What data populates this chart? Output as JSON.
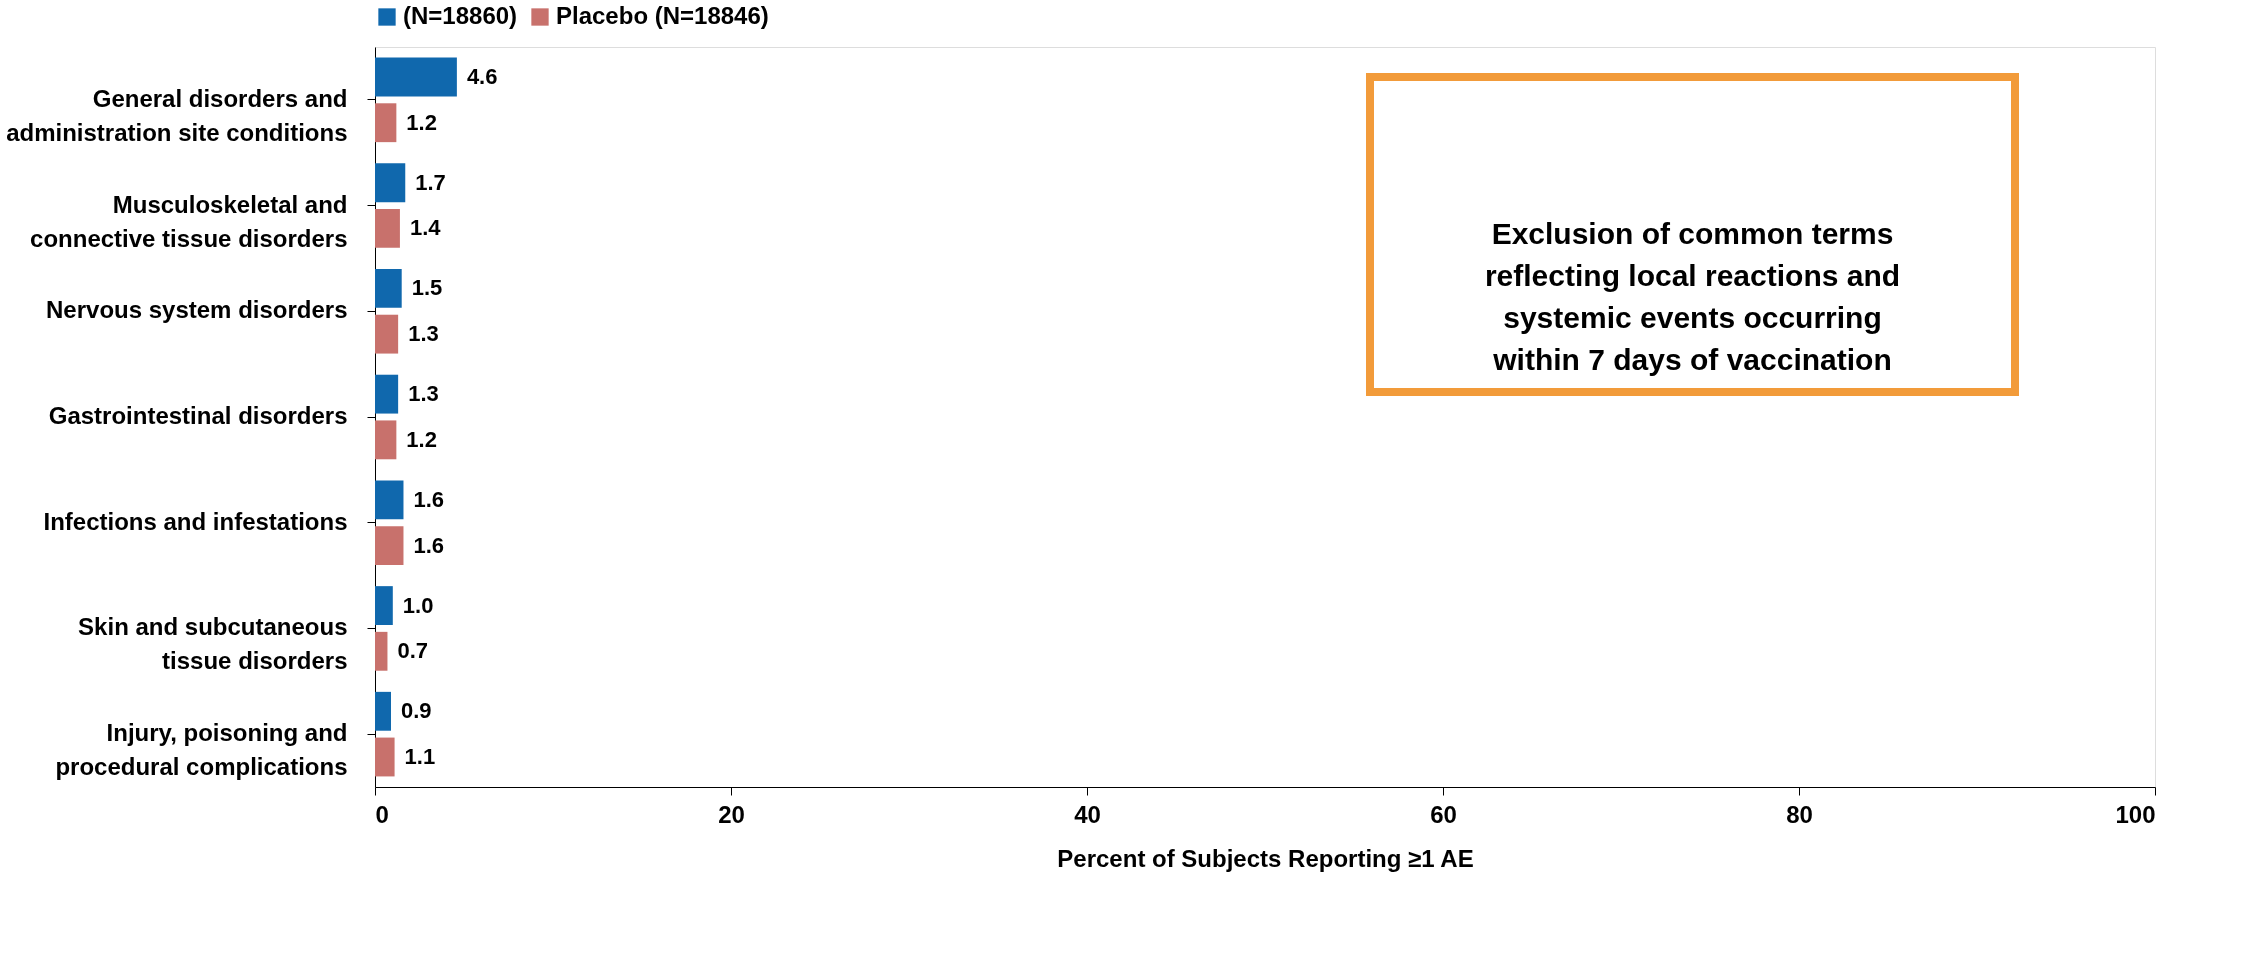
{
  "chart_data": {
    "type": "bar",
    "orientation": "horizontal",
    "xlabel": "Percent of Subjects Reporting ≥1 AE",
    "categories": [
      "General disorders and administration site conditions",
      "Musculoskeletal and connective tissue disorders",
      "Nervous system disorders",
      "Gastrointestinal disorders",
      "Infections and infestations",
      "Skin and subcutaneous tissue disorders",
      "Injury, poisoning and procedural complications"
    ],
    "series": [
      {
        "name": "(N=18860)",
        "color": "#1068ad",
        "values": [
          4.6,
          1.7,
          1.5,
          1.3,
          1.6,
          1.0,
          0.9
        ],
        "value_labels": [
          "4.6",
          "1.7",
          "1.5",
          "1.3",
          "1.6",
          "1.0",
          "0.9"
        ]
      },
      {
        "name": "Placebo (N=18846)",
        "color": "#c8716c",
        "values": [
          1.2,
          1.4,
          1.3,
          1.2,
          1.6,
          0.7,
          1.1
        ],
        "value_labels": [
          "1.2",
          "1.4",
          "1.3",
          "1.2",
          "1.6",
          "0.7",
          "1.1"
        ]
      }
    ],
    "xlim": [
      0,
      100
    ],
    "xticks": [
      0,
      20,
      40,
      60,
      80,
      100
    ],
    "grid": false,
    "legend": "top",
    "annotations": [
      "Exclusion of common terms reflecting local reactions and systemic events occurring within 7 days of vaccination"
    ]
  }
}
